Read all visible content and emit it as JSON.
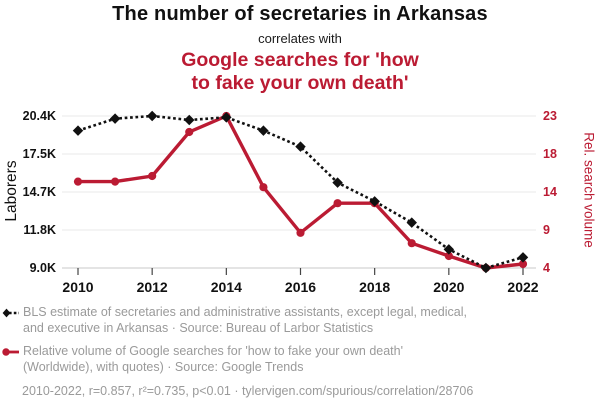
{
  "header": {
    "title": "The number of secretaries in Arkansas",
    "subtitle": "correlates with",
    "secondary_title_lines": [
      "Google searches for 'how",
      "to fake your own death'"
    ]
  },
  "colors": {
    "accent_red": "#bb1b33",
    "series_black": "#111111",
    "legend_gray": "#9a9a9a",
    "gridline": "#e8e8e8",
    "axis_line": "#c9c9c9",
    "tick_mark": "#444444"
  },
  "chart_data": {
    "type": "line",
    "x": [
      2010,
      2011,
      2012,
      2013,
      2014,
      2015,
      2016,
      2017,
      2018,
      2019,
      2020,
      2021,
      2022
    ],
    "x_tick_years": [
      2010,
      2012,
      2014,
      2016,
      2018,
      2020,
      2022
    ],
    "grid": "horizontal",
    "legend_position": "bottom",
    "left_axis": {
      "label": "Laborers",
      "tick_labels": [
        "20.4K",
        "17.5K",
        "14.7K",
        "11.8K",
        "9.0K"
      ],
      "range": [
        9000,
        20400
      ],
      "color": "#111111"
    },
    "right_axis": {
      "label": "Rel. search volume",
      "tick_labels": [
        "23",
        "18",
        "14",
        "9",
        "4"
      ],
      "range": [
        4,
        23
      ],
      "color": "#bb1b33"
    },
    "series": [
      {
        "name": "BLS estimate of secretaries and administrative assistants, except legal, medical, and executive in Arkansas",
        "axis": "left",
        "line_style": "dashed",
        "marker": "diamond",
        "color": "#111111",
        "values": [
          19300,
          20200,
          20400,
          20100,
          20300,
          19300,
          18100,
          15400,
          14000,
          12400,
          10400,
          9000,
          9800
        ]
      },
      {
        "name": "Relative volume of Google searches for 'how to fake your own death' (Worldwide)",
        "axis": "right",
        "line_style": "solid",
        "marker": "circle",
        "color": "#bb1b33",
        "values": [
          14.8,
          14.8,
          15.5,
          21,
          23,
          14.1,
          8.4,
          12.1,
          12.1,
          7.1,
          5.5,
          4,
          4.5
        ]
      }
    ]
  },
  "legend": {
    "items": [
      {
        "icon": "diamond-dashed-line",
        "lines": [
          "BLS estimate of secretaries and administrative assistants, except legal, medical,",
          "and executive in Arkansas · Source: Bureau of Larbor Statistics"
        ]
      },
      {
        "icon": "circle-solid-line",
        "lines": [
          "Relative volume of Google searches for 'how to fake your own death'",
          "(Worldwide), with quotes) · Source: Google Trends"
        ]
      }
    ]
  },
  "footer": {
    "text": "2010-2022, r=0.857, r²=0.735, p<0.01 · tylervigen.com/spurious/correlation/28706"
  }
}
